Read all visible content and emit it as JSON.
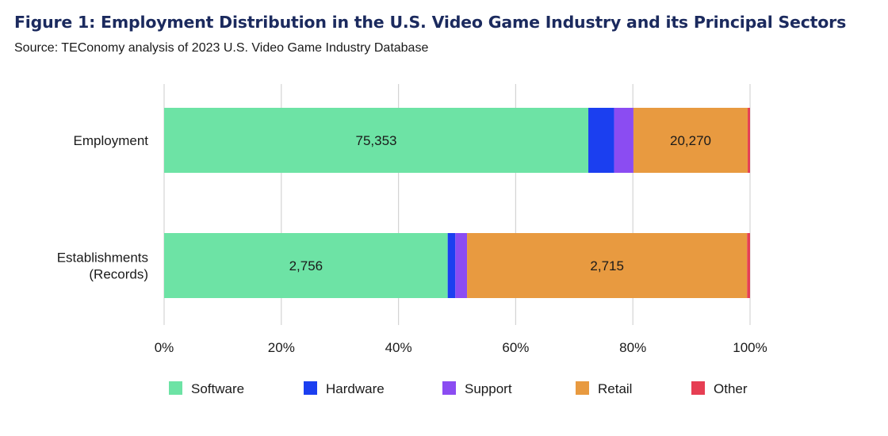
{
  "title": "Figure 1: Employment Distribution in the U.S. Video Game Industry and its Principal Sectors",
  "subtitle": "Source: TEConomy analysis of 2023 U.S. Video Game Industry Database",
  "chart_data": {
    "type": "bar",
    "orientation": "horizontal",
    "stacked": true,
    "normalized_percent": true,
    "categories": [
      [
        "Employment"
      ],
      [
        "Establishments",
        "(Records)"
      ]
    ],
    "series": [
      {
        "name": "Software",
        "color": "#6de3a5",
        "values": [
          72.4,
          48.4
        ],
        "data_labels": [
          "75,353",
          "2,756"
        ]
      },
      {
        "name": "Hardware",
        "color": "#1b3ff0",
        "values": [
          4.4,
          1.3
        ],
        "data_labels": [
          "",
          ""
        ]
      },
      {
        "name": "Support",
        "color": "#8b4cf2",
        "values": [
          3.3,
          2.0
        ],
        "data_labels": [
          "",
          ""
        ]
      },
      {
        "name": "Retail",
        "color": "#e89a40",
        "values": [
          19.5,
          47.8
        ],
        "data_labels": [
          "20,270",
          "2,715"
        ]
      },
      {
        "name": "Other",
        "color": "#e63e53",
        "values": [
          0.4,
          0.5
        ],
        "data_labels": [
          "",
          ""
        ]
      }
    ],
    "x_ticks": [
      "0%",
      "20%",
      "40%",
      "60%",
      "80%",
      "100%"
    ],
    "xlim": [
      0,
      100
    ],
    "grid": true,
    "legend_position": "bottom"
  }
}
